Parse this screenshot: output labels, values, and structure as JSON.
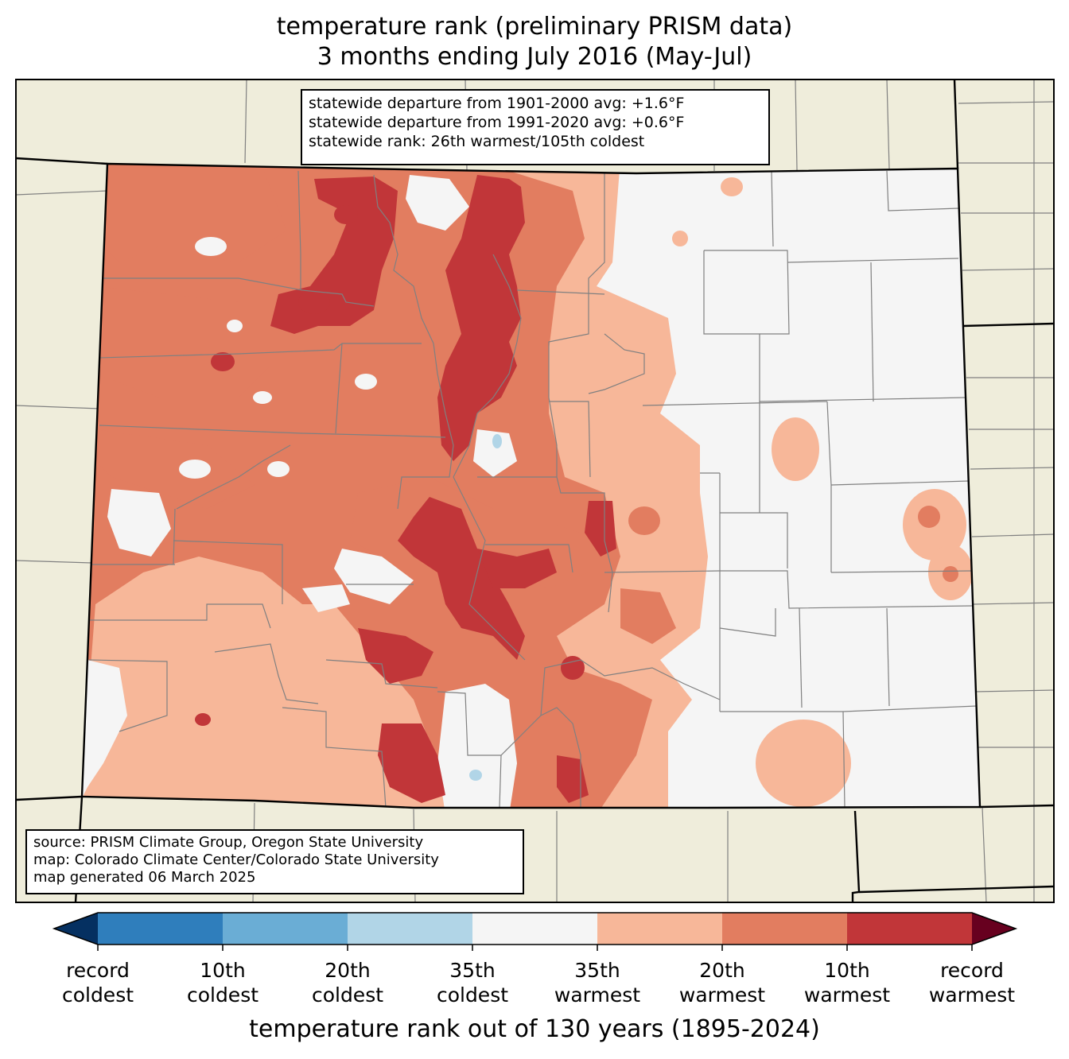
{
  "title_line1": "temperature rank (preliminary PRISM data)",
  "title_line2": "3 months ending July 2016 (May-Jul)",
  "stats": [
    "statewide departure from 1901-2000 avg: +1.6°F",
    "statewide departure from 1991-2020 avg: +0.6°F",
    "statewide rank: 26th warmest/105th coldest"
  ],
  "source": [
    "source: PRISM Climate Group, Oregon State University",
    "map: Colorado Climate Center/Colorado State University",
    "map generated 06 March 2025"
  ],
  "colorbar": {
    "label": "temperature rank out of 130 years (1895-2024)",
    "colors": [
      "#053061",
      "#2f7ebc",
      "#6aadd5",
      "#b1d5e7",
      "#f5f5f5",
      "#f7b799",
      "#e27d60",
      "#c13639",
      "#67001f"
    ],
    "ticks": [
      {
        "l1": "record",
        "l2": "coldest"
      },
      {
        "l1": "10th",
        "l2": "coldest"
      },
      {
        "l1": "20th",
        "l2": "coldest"
      },
      {
        "l1": "35th",
        "l2": "coldest"
      },
      {
        "l1": "35th",
        "l2": "warmest"
      },
      {
        "l1": "20th",
        "l2": "warmest"
      },
      {
        "l1": "10th",
        "l2": "warmest"
      },
      {
        "l1": "record",
        "l2": "warmest"
      }
    ]
  },
  "map_colors": {
    "background_land": "#efeddb",
    "near_normal": "#f5f5f5",
    "warm_35": "#f7b799",
    "warm_20": "#e27d60",
    "warm_10": "#c13639",
    "cold_35": "#b1d5e7",
    "county_lines": "#808080",
    "state_lines": "#000000"
  }
}
